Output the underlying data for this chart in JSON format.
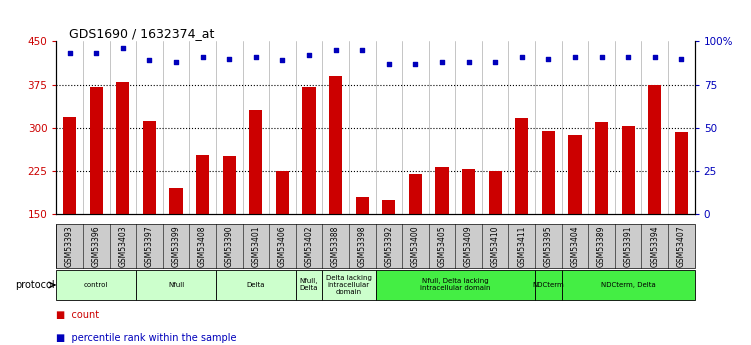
{
  "title": "GDS1690 / 1632374_at",
  "samples": [
    "GSM53393",
    "GSM53396",
    "GSM53403",
    "GSM53397",
    "GSM53399",
    "GSM53408",
    "GSM53390",
    "GSM53401",
    "GSM53406",
    "GSM53402",
    "GSM53388",
    "GSM53398",
    "GSM53392",
    "GSM53400",
    "GSM53405",
    "GSM53409",
    "GSM53410",
    "GSM53411",
    "GSM53395",
    "GSM53404",
    "GSM53389",
    "GSM53391",
    "GSM53394",
    "GSM53407"
  ],
  "counts": [
    318,
    370,
    380,
    312,
    195,
    252,
    250,
    330,
    225,
    370,
    390,
    180,
    175,
    220,
    232,
    228,
    225,
    317,
    295,
    287,
    310,
    302,
    375,
    293
  ],
  "percentiles": [
    93,
    93,
    96,
    89,
    88,
    91,
    90,
    91,
    89,
    92,
    95,
    95,
    87,
    87,
    88,
    88,
    88,
    91,
    90,
    91,
    91,
    91,
    91,
    90
  ],
  "ylim_left": [
    150,
    450
  ],
  "ylim_right": [
    0,
    100
  ],
  "yticks_left": [
    150,
    225,
    300,
    375,
    450
  ],
  "yticks_right": [
    0,
    25,
    50,
    75,
    100
  ],
  "ytick_labels_left": [
    "150",
    "225",
    "300",
    "375",
    "450"
  ],
  "ytick_labels_right": [
    "0",
    "25",
    "50",
    "75",
    "100%"
  ],
  "bar_color": "#cc0000",
  "dot_color": "#0000bb",
  "protocol_groups": [
    {
      "label": "control",
      "start": 0,
      "end": 2,
      "color": "#ccffcc"
    },
    {
      "label": "Nfull",
      "start": 3,
      "end": 5,
      "color": "#ccffcc"
    },
    {
      "label": "Delta",
      "start": 6,
      "end": 8,
      "color": "#ccffcc"
    },
    {
      "label": "Nfull,\nDelta",
      "start": 9,
      "end": 9,
      "color": "#ccffcc"
    },
    {
      "label": "Delta lacking\nintracellular\ndomain",
      "start": 10,
      "end": 11,
      "color": "#ccffcc"
    },
    {
      "label": "Nfull, Delta lacking\nintracellular domain",
      "start": 12,
      "end": 17,
      "color": "#44ee44"
    },
    {
      "label": "NDCterm",
      "start": 18,
      "end": 18,
      "color": "#44ee44"
    },
    {
      "label": "NDCterm, Delta",
      "start": 19,
      "end": 23,
      "color": "#44ee44"
    }
  ],
  "left_axis_color": "#cc0000",
  "right_axis_color": "#0000bb",
  "xtick_bg": "#cccccc",
  "fig_width": 7.51,
  "fig_height": 3.45
}
